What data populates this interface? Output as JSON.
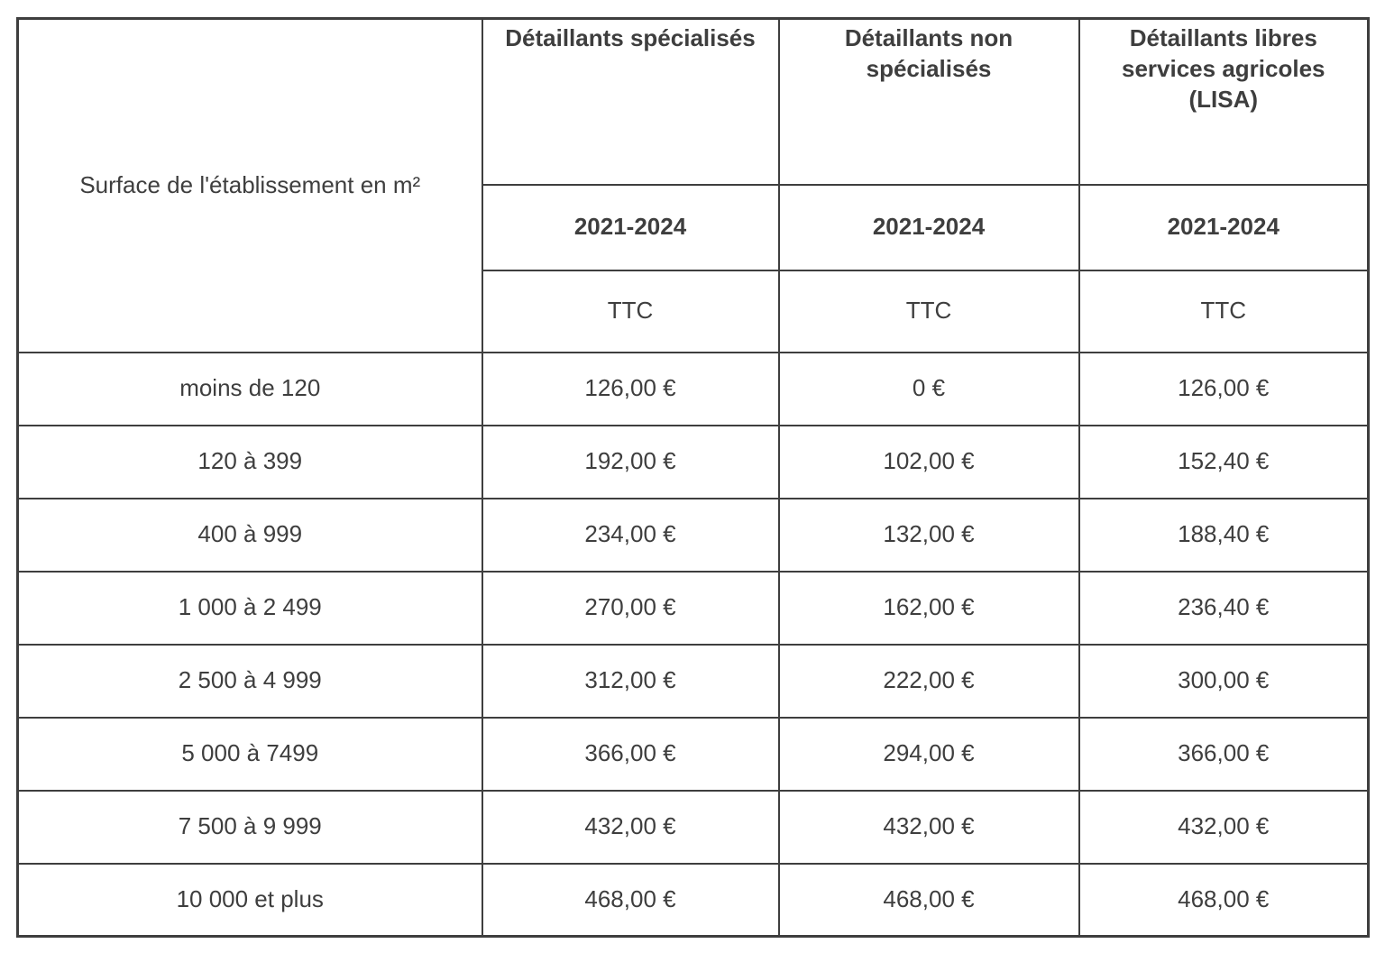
{
  "chart_data": {
    "type": "table",
    "corner_header": "Surface de l'établissement en m²",
    "columns": [
      {
        "title": "Détaillants spécialisés",
        "period": "2021-2024",
        "tax_label": "TTC"
      },
      {
        "title": "Détaillants non spécialisés",
        "period": "2021-2024",
        "tax_label": "TTC"
      },
      {
        "title": "Détaillants libres services agricoles (LISA)",
        "period": "2021-2024",
        "tax_label": "TTC"
      }
    ],
    "rows": [
      {
        "label": "moins de 120",
        "values": [
          "126,00 €",
          "0 €",
          "126,00 €"
        ]
      },
      {
        "label": "120 à 399",
        "values": [
          "192,00 €",
          "102,00 €",
          "152,40 €"
        ]
      },
      {
        "label": "400 à 999",
        "values": [
          "234,00 €",
          "132,00 €",
          "188,40 €"
        ]
      },
      {
        "label": "1 000 à 2 499",
        "values": [
          "270,00 €",
          "162,00 €",
          "236,40 €"
        ]
      },
      {
        "label": "2 500 à 4 999",
        "values": [
          "312,00 €",
          "222,00 €",
          "300,00 €"
        ]
      },
      {
        "label": "5 000 à 7499",
        "values": [
          "366,00 €",
          "294,00 €",
          "366,00 €"
        ]
      },
      {
        "label": "7 500 à 9 999",
        "values": [
          "432,00 €",
          "432,00 €",
          "432,00 €"
        ]
      },
      {
        "label": "10 000 et plus",
        "values": [
          "468,00 €",
          "468,00 €",
          "468,00 €"
        ]
      }
    ]
  },
  "colors": {
    "border": "#3e3e3e",
    "text": "#3e3e3e",
    "background": "#ffffff"
  }
}
